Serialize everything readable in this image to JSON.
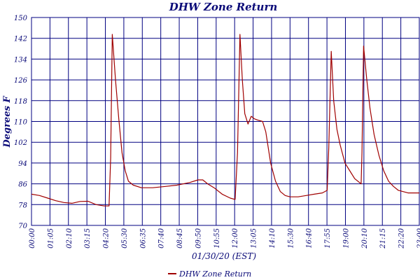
{
  "colors": {
    "grid": "#000080",
    "series": "#a00000",
    "text": "#0a0a78"
  },
  "chart_data": {
    "type": "line",
    "title": "DHW Zone Return",
    "ylabel": "Degrees F",
    "xlabel": "01/30/20 (EST)",
    "ylim": [
      70,
      150
    ],
    "y_ticks": [
      "70",
      "78",
      "86",
      "94",
      "102",
      "110",
      "118",
      "126",
      "134",
      "142",
      "150"
    ],
    "x_ticks": [
      "00:00",
      "01:05",
      "02:10",
      "03:15",
      "04:20",
      "05:30",
      "06:35",
      "07:40",
      "08:45",
      "09:50",
      "10:55",
      "12:00",
      "13:05",
      "14:10",
      "15:30",
      "16:40",
      "17:55",
      "19:00",
      "20:10",
      "21:15",
      "22:20",
      "23:00"
    ],
    "legend": {
      "position": "bottom-center"
    },
    "grid": true,
    "series": [
      {
        "name": "DHW Zone Return",
        "color": "#a00000",
        "points": [
          [
            0.0,
            82.0
          ],
          [
            0.5,
            81.5
          ],
          [
            1.0,
            80.5
          ],
          [
            1.5,
            79.5
          ],
          [
            2.0,
            78.8
          ],
          [
            2.5,
            78.5
          ],
          [
            3.0,
            79.2
          ],
          [
            3.5,
            79.3
          ],
          [
            4.0,
            78.0
          ],
          [
            4.5,
            77.5
          ],
          [
            4.8,
            77.5
          ],
          [
            4.9,
            96.0
          ],
          [
            5.0,
            143.5
          ],
          [
            5.2,
            126.0
          ],
          [
            5.4,
            111.0
          ],
          [
            5.6,
            98.0
          ],
          [
            5.8,
            91.0
          ],
          [
            6.0,
            87.0
          ],
          [
            6.3,
            85.5
          ],
          [
            6.8,
            84.5
          ],
          [
            7.5,
            84.5
          ],
          [
            8.3,
            85.0
          ],
          [
            9.0,
            85.5
          ],
          [
            9.8,
            86.5
          ],
          [
            10.3,
            87.5
          ],
          [
            10.6,
            87.5
          ],
          [
            10.9,
            86.0
          ],
          [
            11.3,
            84.5
          ],
          [
            11.8,
            82.0
          ],
          [
            12.3,
            80.5
          ],
          [
            12.6,
            80.0
          ],
          [
            12.75,
            98.0
          ],
          [
            12.9,
            143.5
          ],
          [
            13.05,
            126.0
          ],
          [
            13.2,
            113.0
          ],
          [
            13.4,
            109.0
          ],
          [
            13.6,
            112.0
          ],
          [
            13.8,
            111.0
          ],
          [
            14.0,
            110.5
          ],
          [
            14.3,
            110.0
          ],
          [
            14.5,
            106.0
          ],
          [
            14.8,
            94.0
          ],
          [
            15.1,
            87.0
          ],
          [
            15.4,
            83.0
          ],
          [
            15.7,
            81.5
          ],
          [
            16.0,
            81.0
          ],
          [
            16.5,
            81.0
          ],
          [
            17.0,
            81.5
          ],
          [
            17.5,
            82.0
          ],
          [
            18.0,
            82.5
          ],
          [
            18.3,
            83.5
          ],
          [
            18.4,
            100.0
          ],
          [
            18.55,
            137.0
          ],
          [
            18.7,
            118.0
          ],
          [
            18.9,
            107.0
          ],
          [
            19.1,
            101.0
          ],
          [
            19.4,
            94.0
          ],
          [
            19.7,
            91.0
          ],
          [
            20.0,
            88.0
          ],
          [
            20.4,
            86.0
          ],
          [
            20.45,
            98.0
          ],
          [
            20.55,
            139.0
          ],
          [
            20.75,
            126.0
          ],
          [
            20.95,
            115.0
          ],
          [
            21.2,
            105.0
          ],
          [
            21.5,
            97.0
          ],
          [
            21.8,
            91.0
          ],
          [
            22.1,
            87.0
          ],
          [
            22.4,
            85.0
          ],
          [
            22.7,
            83.5
          ],
          [
            23.0,
            83.0
          ],
          [
            23.3,
            82.5
          ],
          [
            24.0,
            82.5
          ]
        ]
      }
    ]
  }
}
